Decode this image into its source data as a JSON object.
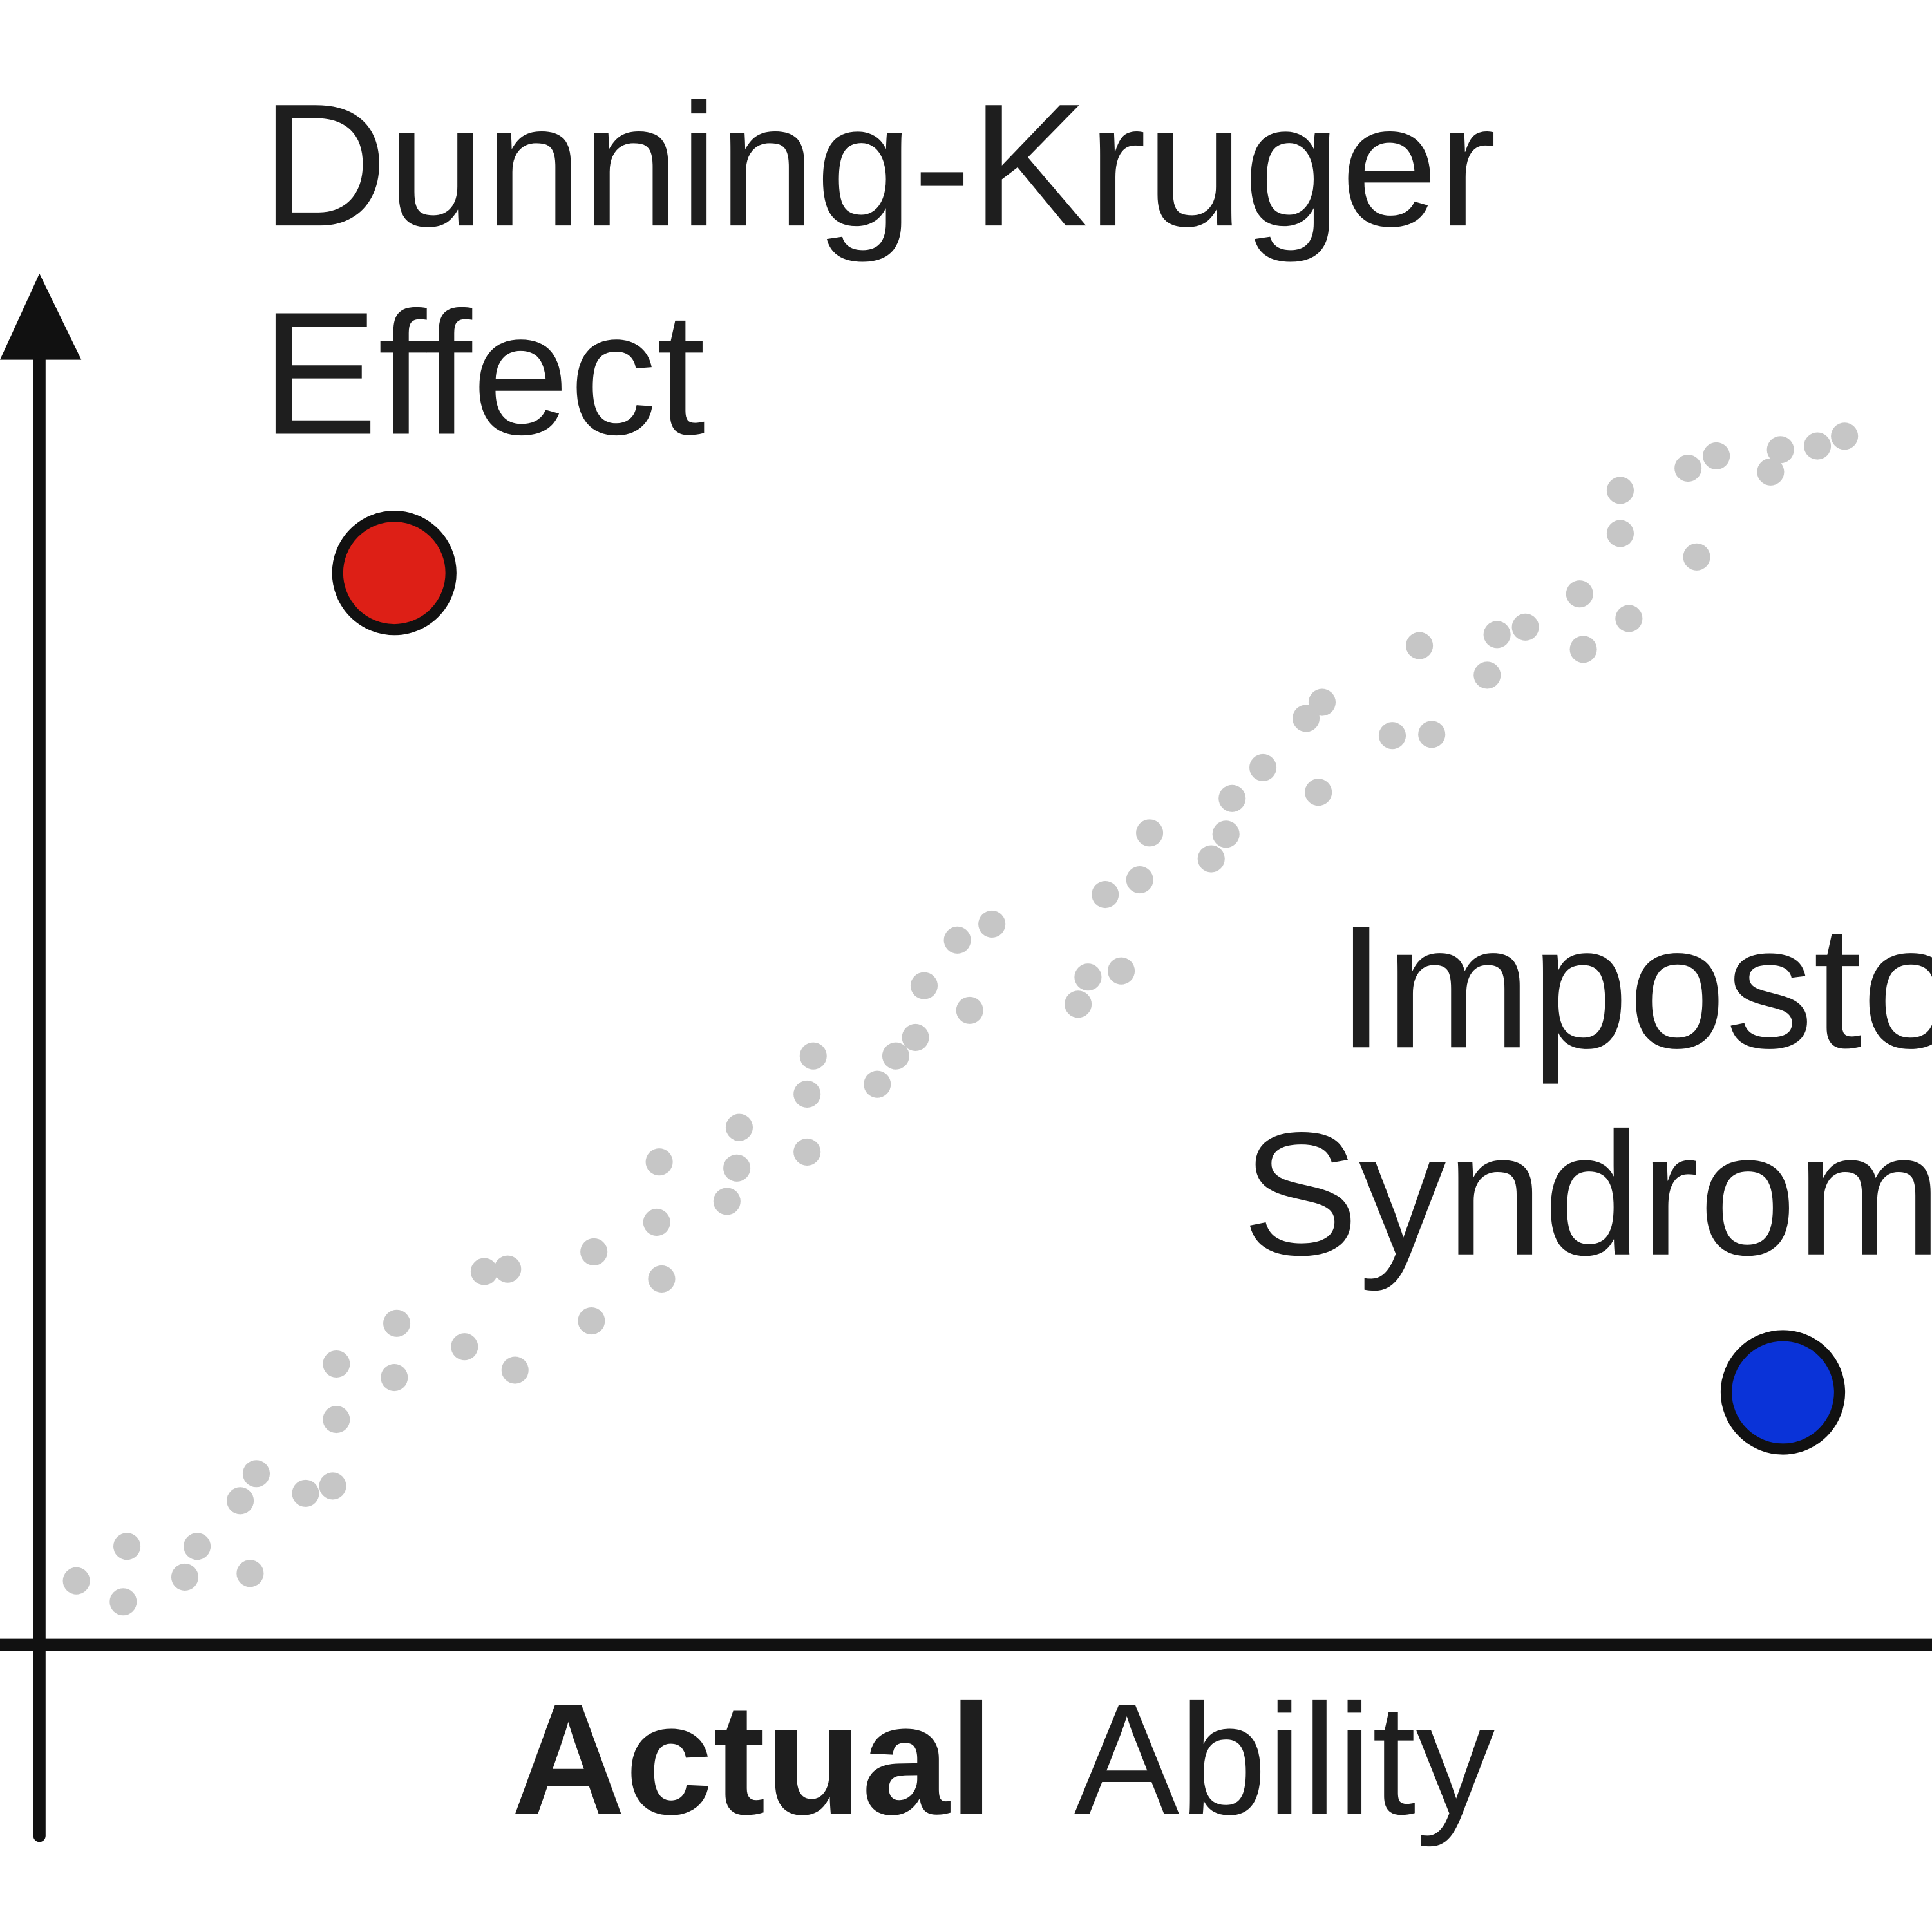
{
  "annotations": {
    "dunning_kruger": [
      "Dunning-Kruger",
      "Effect"
    ],
    "impostor": [
      "Impostor",
      "Syndrome"
    ]
  },
  "x_axis_label": {
    "bold": "Actual",
    "regular": "Ability"
  }
}
